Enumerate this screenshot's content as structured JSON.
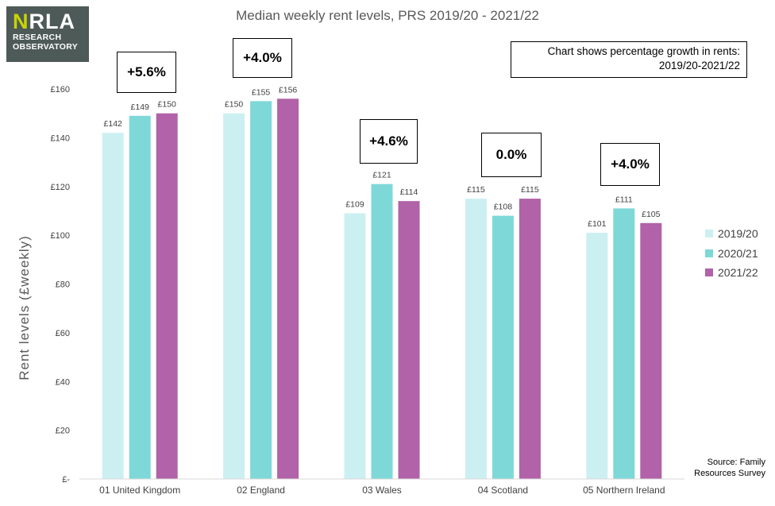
{
  "logo": {
    "line1_accent": "N",
    "line1_rest": "RLA",
    "line2": "RESEARCH",
    "line3": "OBSERVATORY"
  },
  "note": {
    "line1": "Chart shows percentage growth in rents:",
    "line2": "2019/20-2021/22"
  },
  "source": {
    "line1": "Source: Family",
    "line2": "Resources Survey"
  },
  "colors": {
    "s2019": "#ccf0f2",
    "s2020": "#7fd8d8",
    "s2021": "#b162a8",
    "axis": "#d9d9d9",
    "text": "#404040"
  },
  "chart_data": {
    "type": "bar",
    "title": "Median weekly rent levels, PRS 2019/20 - 2021/22",
    "ylabel": "Rent levels (£weekly)",
    "xlabel": "",
    "ylim": [
      0,
      160
    ],
    "yticks": [
      0,
      20,
      40,
      60,
      80,
      100,
      120,
      140,
      160
    ],
    "ytick_labels": [
      "£-",
      "£20",
      "£40",
      "£60",
      "£80",
      "£100",
      "£120",
      "£140",
      "£160"
    ],
    "categories": [
      "01 United Kingdom",
      "02 England",
      "03 Wales",
      "04 Scotland",
      "05 Northern Ireland"
    ],
    "series": [
      {
        "name": "2019/20",
        "values": [
          142,
          150,
          109,
          115,
          101
        ],
        "labels": [
          "£142",
          "£150",
          "£109",
          "£115",
          "£101"
        ]
      },
      {
        "name": "2020/21",
        "values": [
          149,
          155,
          121,
          108,
          111
        ],
        "labels": [
          "£149",
          "£155",
          "£121",
          "£108",
          "£111"
        ]
      },
      {
        "name": "2021/22",
        "values": [
          150,
          156,
          114,
          115,
          105
        ],
        "labels": [
          "£150",
          "£156",
          "£114",
          "£115",
          "£105"
        ]
      }
    ],
    "growth_annotations": [
      "+5.6%",
      "+4.0%",
      "+4.6%",
      "0.0%",
      "+4.0%"
    ],
    "legend_position": "right",
    "grid": false
  }
}
